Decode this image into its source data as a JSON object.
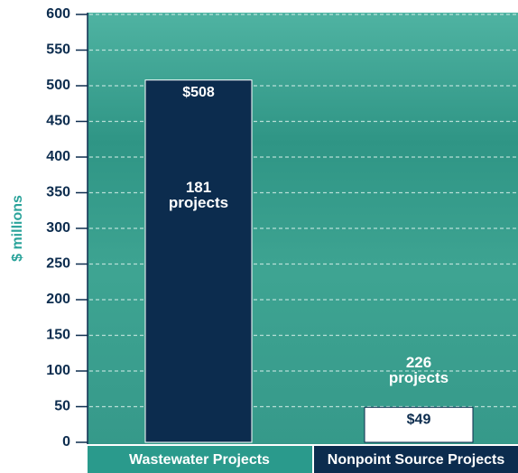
{
  "chart_data": {
    "type": "bar",
    "y_label": "$ millions",
    "categories": [
      "Wastewater Projects",
      "Nonpoint Source Projects"
    ],
    "values": [
      508,
      49
    ],
    "value_labels": [
      "$508",
      "$49"
    ],
    "colors": [
      "#0c2c4e",
      "#ffffff"
    ],
    "annotations": [
      "181 projects",
      "226 projects"
    ],
    "ylim": [
      0,
      600
    ],
    "yticks": [
      0,
      50,
      100,
      150,
      200,
      250,
      300,
      350,
      400,
      450,
      500,
      550,
      600
    ],
    "grid": true
  }
}
